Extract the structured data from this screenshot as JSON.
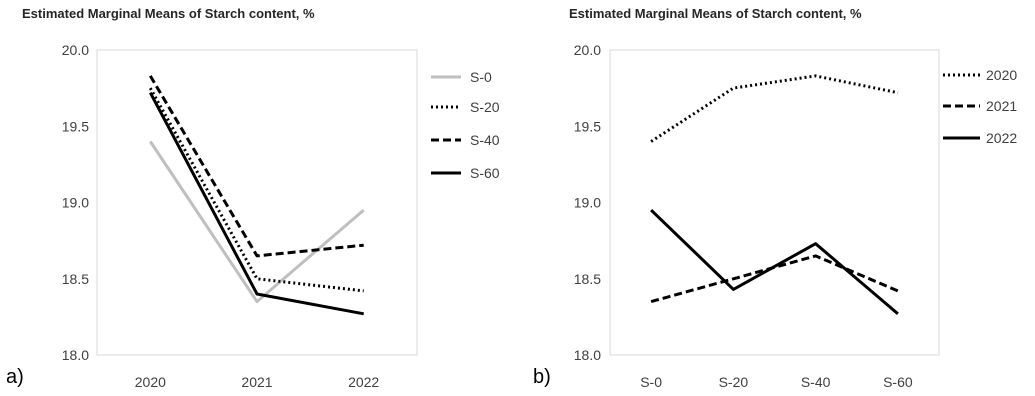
{
  "chart_data": [
    {
      "panel_label": "a)",
      "type": "line",
      "title": "Estimated Marginal Means of Starch content, %",
      "xlabel": "",
      "ylabel": "",
      "categories": [
        "2020",
        "2021",
        "2022"
      ],
      "ylim": [
        18.0,
        20.0
      ],
      "yticks": [
        "18.0",
        "18.5",
        "19.0",
        "19.5",
        "20.0"
      ],
      "grid": false,
      "legend_position": "right",
      "series": [
        {
          "name": "S-0",
          "values": [
            19.4,
            18.35,
            18.95
          ],
          "color": "#bfbfbf",
          "dash": "solid"
        },
        {
          "name": "S-20",
          "values": [
            19.75,
            18.5,
            18.42
          ],
          "color": "#000000",
          "dash": "dotted"
        },
        {
          "name": "S-40",
          "values": [
            19.83,
            18.65,
            18.72
          ],
          "color": "#000000",
          "dash": "dashed"
        },
        {
          "name": "S-60",
          "values": [
            19.72,
            18.4,
            18.27
          ],
          "color": "#000000",
          "dash": "solid"
        }
      ]
    },
    {
      "panel_label": "b)",
      "type": "line",
      "title": "Estimated Marginal Means of Starch content, %",
      "xlabel": "",
      "ylabel": "",
      "categories": [
        "S-0",
        "S-20",
        "S-40",
        "S-60"
      ],
      "ylim": [
        18.0,
        20.0
      ],
      "yticks": [
        "18.0",
        "18.5",
        "19.0",
        "19.5",
        "20.0"
      ],
      "grid": false,
      "legend_position": "right",
      "series": [
        {
          "name": "2020",
          "values": [
            19.4,
            19.75,
            19.83,
            19.72
          ],
          "color": "#000000",
          "dash": "dotted"
        },
        {
          "name": "2021",
          "values": [
            18.35,
            18.5,
            18.65,
            18.42
          ],
          "color": "#000000",
          "dash": "dashed"
        },
        {
          "name": "2022",
          "values": [
            18.95,
            18.43,
            18.73,
            18.27
          ],
          "color": "#000000",
          "dash": "solid"
        }
      ]
    }
  ]
}
